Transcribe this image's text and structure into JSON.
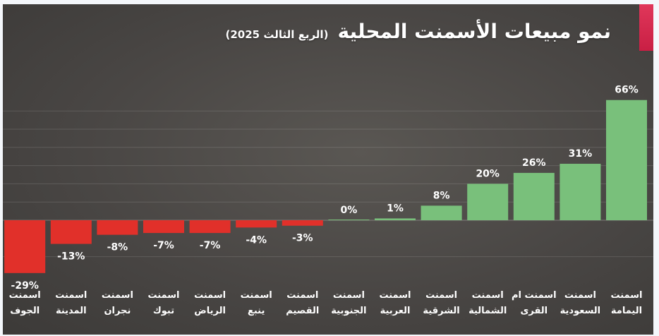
{
  "header": {
    "title": "نمو مبيعات الأسمنت المحلية",
    "subtitle": "(الربع الثالث 2025)"
  },
  "colors": {
    "positive": "#79c07b",
    "negative": "#e1302a",
    "accent": "#d42a4d"
  },
  "chart_data": {
    "type": "bar",
    "title": "نمو مبيعات الأسمنت المحلية (الربع الثالث 2025)",
    "unit": "%",
    "ylim": [
      -30,
      70
    ],
    "grid": true,
    "categories": [
      [
        "اسمنت",
        "اليمامة"
      ],
      [
        "اسمنت",
        "السعودية"
      ],
      [
        "اسمنت ام",
        "القرى"
      ],
      [
        "اسمنت",
        "الشمالية"
      ],
      [
        "اسمنت",
        "الشرقية"
      ],
      [
        "اسمنت",
        "العربية"
      ],
      [
        "اسمنت",
        "الجنوبية"
      ],
      [
        "اسمنت",
        "القصيم"
      ],
      [
        "اسمنت",
        "ينبع"
      ],
      [
        "اسمنت",
        "الرياض"
      ],
      [
        "اسمنت",
        "تبوك"
      ],
      [
        "اسمنت",
        "نجران"
      ],
      [
        "اسمنت",
        "المدينة"
      ],
      [
        "اسمنت",
        "الجوف"
      ]
    ],
    "values": [
      66,
      31,
      26,
      20,
      8,
      1,
      0,
      -3,
      -4,
      -7,
      -7,
      -8,
      -13,
      -29
    ],
    "data_labels": [
      "66%",
      "31%",
      "26%",
      "20%",
      "8%",
      "1%",
      "0%",
      "-3%",
      "-4%",
      "-7%",
      "-7%",
      "-8%",
      "-13%",
      "-29%"
    ]
  }
}
